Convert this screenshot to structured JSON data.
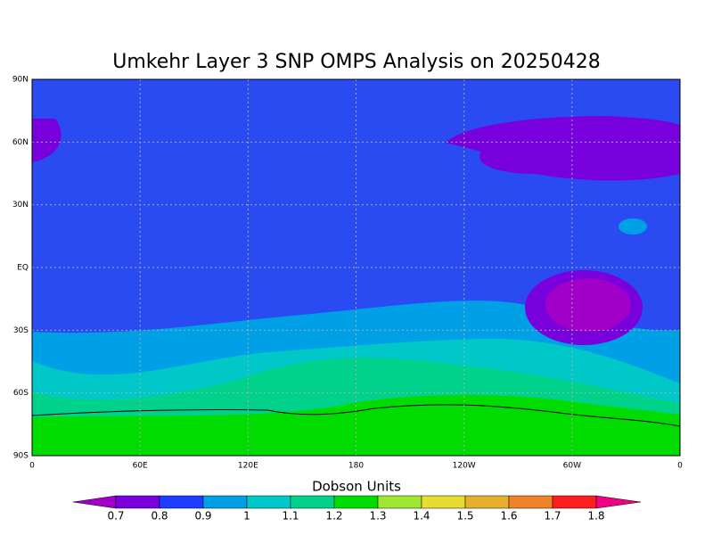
{
  "title": "Umkehr Layer 3 SNP OMPS Analysis on 20250428",
  "y_axis": {
    "labels": [
      "90N",
      "60N",
      "30N",
      "EQ",
      "30S",
      "60S",
      "90S"
    ]
  },
  "x_axis": {
    "labels": [
      "0",
      "60E",
      "120E",
      "180",
      "120W",
      "60W",
      "0"
    ]
  },
  "colorbar": {
    "title": "Dobson Units",
    "labels": [
      0.7,
      0.8,
      0.9,
      1,
      1.1,
      1.2,
      1.3,
      1.4,
      1.5,
      1.6,
      1.7,
      1.8
    ],
    "colors": [
      "#a000c8",
      "#7800dc",
      "#1e3cff",
      "#00a0e6",
      "#00c8c8",
      "#00d28c",
      "#00dc00",
      "#a0e632",
      "#e6dc32",
      "#e6af2d",
      "#f08228",
      "#fa1e1e",
      "#f00082"
    ]
  }
}
